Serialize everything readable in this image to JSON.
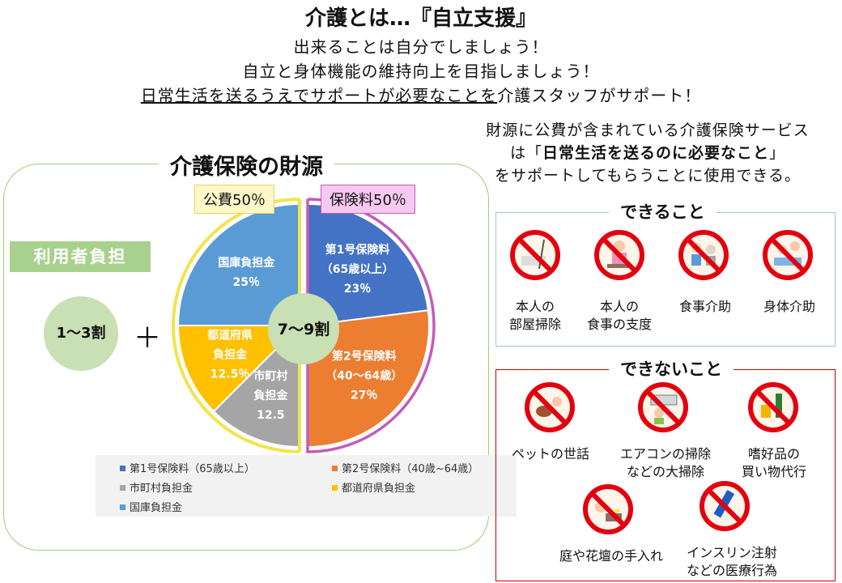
{
  "header": {
    "title": "介護とは…『自立支援』",
    "line1": "出来ることは自分でしましょう！",
    "line2": "自立と身体機能の維持向上を目指しましょう！",
    "line3_underlined": "日常生活を送るうえでサポートが必要なことを",
    "line3_rest": "介護スタッフがサポート！"
  },
  "note": {
    "line1": "財源に公費が含まれている介護保険サービス",
    "line2_pre": "は「",
    "line2_bold": "日常生活を送るのに必要なこと",
    "line2_post": "」",
    "line3": "をサポートしてもらうことに使用できる。"
  },
  "finance": {
    "title": "介護保険の財源",
    "public_tag": "公費50％",
    "insurance_tag": "保険料50％",
    "user_label": "利用者負担",
    "user_share": "1〜3割",
    "plus": "＋",
    "insurance_share": "7〜9割"
  },
  "chart_data": {
    "type": "pie",
    "unit": "%",
    "slices": [
      {
        "name": "第1号保険料（65歳以上）",
        "label_lines": [
          "第1号保険料",
          "（65歳以上）",
          "23％"
        ],
        "value": 23,
        "color": "#4472c4",
        "text_color": "#ffffff"
      },
      {
        "name": "第2号保険料（40歳~64歳）",
        "label_lines": [
          "第2号保険料",
          "（40～64歳）",
          "27％"
        ],
        "value": 27,
        "color": "#ed7d31",
        "text_color": "#ffffff"
      },
      {
        "name": "市町村負担金",
        "label_lines": [
          "市町村",
          "負担金",
          "12.5"
        ],
        "value": 12.5,
        "color": "#a5a5a5",
        "text_color": "#ffffff"
      },
      {
        "name": "都道府県負担金",
        "label_lines": [
          "都道府県",
          "負担金",
          "12.5％"
        ],
        "value": 12.5,
        "color": "#ffc000",
        "text_color": "#ffffff"
      },
      {
        "name": "国庫負担金",
        "label_lines": [
          "国庫負担金",
          "25％"
        ],
        "value": 25,
        "color": "#5b9bd5",
        "text_color": "#ffffff"
      }
    ],
    "legend": [
      {
        "label": "第1号保険料（65歳以上）",
        "color": "#4472c4"
      },
      {
        "label": "第2号保険料（40歳~64歳）",
        "color": "#ed7d31"
      },
      {
        "label": "市町村負担金",
        "color": "#a5a5a5"
      },
      {
        "label": "都道府県負担金",
        "color": "#ffc000"
      },
      {
        "label": "国庫負担金",
        "color": "#5b9bd5"
      }
    ]
  },
  "can": {
    "title": "できること",
    "items": [
      {
        "icon": "room-cleaning-icon",
        "lines": [
          "本人の",
          "部屋掃除"
        ]
      },
      {
        "icon": "meal-prep-icon",
        "lines": [
          "本人の",
          "食事の支度"
        ]
      },
      {
        "icon": "meal-assist-icon",
        "lines": [
          "食事介助"
        ]
      },
      {
        "icon": "body-care-icon",
        "lines": [
          "身体介助"
        ]
      }
    ]
  },
  "cannot": {
    "title": "できないこと",
    "items": [
      {
        "icon": "pet-care-icon",
        "lines": [
          "ペットの世話"
        ]
      },
      {
        "icon": "aircon-cleaning-icon",
        "lines": [
          "エアコンの掃除",
          "などの大掃除"
        ]
      },
      {
        "icon": "luxury-goods-icon",
        "lines": [
          "嗜好品の",
          "買い物代行"
        ]
      },
      {
        "icon": "gardening-icon",
        "lines": [
          "庭や花壇の手入れ"
        ]
      },
      {
        "icon": "insulin-injection-icon",
        "lines": [
          "インスリン注射",
          "などの医療行為"
        ]
      }
    ]
  },
  "colors": {
    "prohibit": "#e3000f",
    "frame_green": "#9ecf71",
    "user_green": "#a9d18e"
  }
}
